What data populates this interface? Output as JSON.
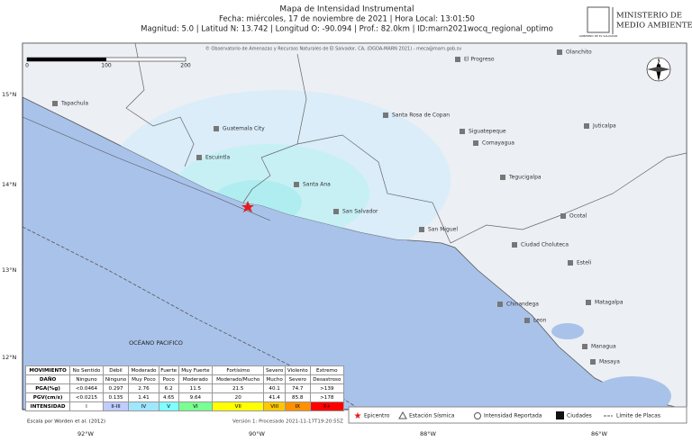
{
  "header": {
    "title": "Mapa de Intensidad Instrumental",
    "date_line": "Fecha: miércoles, 17 de noviembre de 2021 | Hora Local: 13:01:50",
    "params_line": "Magnitud: 5.0 | Latitud N: 13.742 | Longitud O: -90.094 | Prof.: 82.0km | ID:marn2021wocq_regional_optimo"
  },
  "logo": {
    "gov": "GOBIERNO DE EL SALVADOR",
    "ministry": [
      "MINISTERIO DE",
      "MEDIO AMBIENTE"
    ]
  },
  "map": {
    "credit": "© Observatorio de Amenazas y Recursos Naturales de El Salvador, CA, (DGOA-MARN 2021) - meca@marn.gob.sv",
    "scale": [
      0,
      100,
      200
    ],
    "lat_labels": [
      "15°N",
      "14°N",
      "13°N",
      "12°N"
    ],
    "lon_labels": [
      "92°W",
      "90°W",
      "88°W",
      "86°W"
    ],
    "compass": "N",
    "ocean": "OCÉANO PACIFICO",
    "places": [
      "Tapachula",
      "Guatemala City",
      "Escuintla",
      "Santa Ana",
      "San Salvador",
      "San Miguel",
      "Santa Rosa de Copan",
      "Siguatepeque",
      "Comayagua",
      "Tegucigalpa",
      "Juticalpa",
      "Olanchito",
      "El Progreso",
      "Ocotal",
      "Ciudad Choluteca",
      "Esteli",
      "Matagalpa",
      "Chinandega",
      "Leon",
      "Managua",
      "Masaya"
    ]
  },
  "legend_table": {
    "rows": [
      [
        "MOVIMIENTO",
        "No Sentido",
        "Débil",
        "Moderado",
        "Fuerte",
        "Muy Fuerte",
        "Fortísimo",
        "Severo",
        "Violento",
        "Extremo"
      ],
      [
        "DAÑO",
        "Ninguno",
        "Ninguno",
        "Muy Poco",
        "Poco",
        "Moderado",
        "Moderado/Mucho",
        "Mucho",
        "Severo",
        "Desastroso"
      ],
      [
        "PGA(%g)",
        "<0.0464",
        "0.297",
        "2.76",
        "6.2",
        "11.5",
        "21.5",
        "40.1",
        "74.7",
        ">139"
      ],
      [
        "PGV(cm/s)",
        "<0.0215",
        "0.135",
        "1.41",
        "4.65",
        "9.64",
        "20",
        "41.4",
        "85.8",
        ">178"
      ],
      [
        "INTENSIDAD",
        "I",
        "II-III",
        "IV",
        "V",
        "VI",
        "VII",
        "VIII",
        "IX",
        "X+"
      ]
    ]
  },
  "symbols": [
    "Epicentro",
    "Estación Sísmica",
    "Intensidad Reportada",
    "Ciudades",
    "Límite de Placas"
  ],
  "footer": {
    "scale_note": "Escala por Worden et al. (2012)",
    "version": "Versión 1: Procesado 2021-11-17T19:20:55Z"
  }
}
